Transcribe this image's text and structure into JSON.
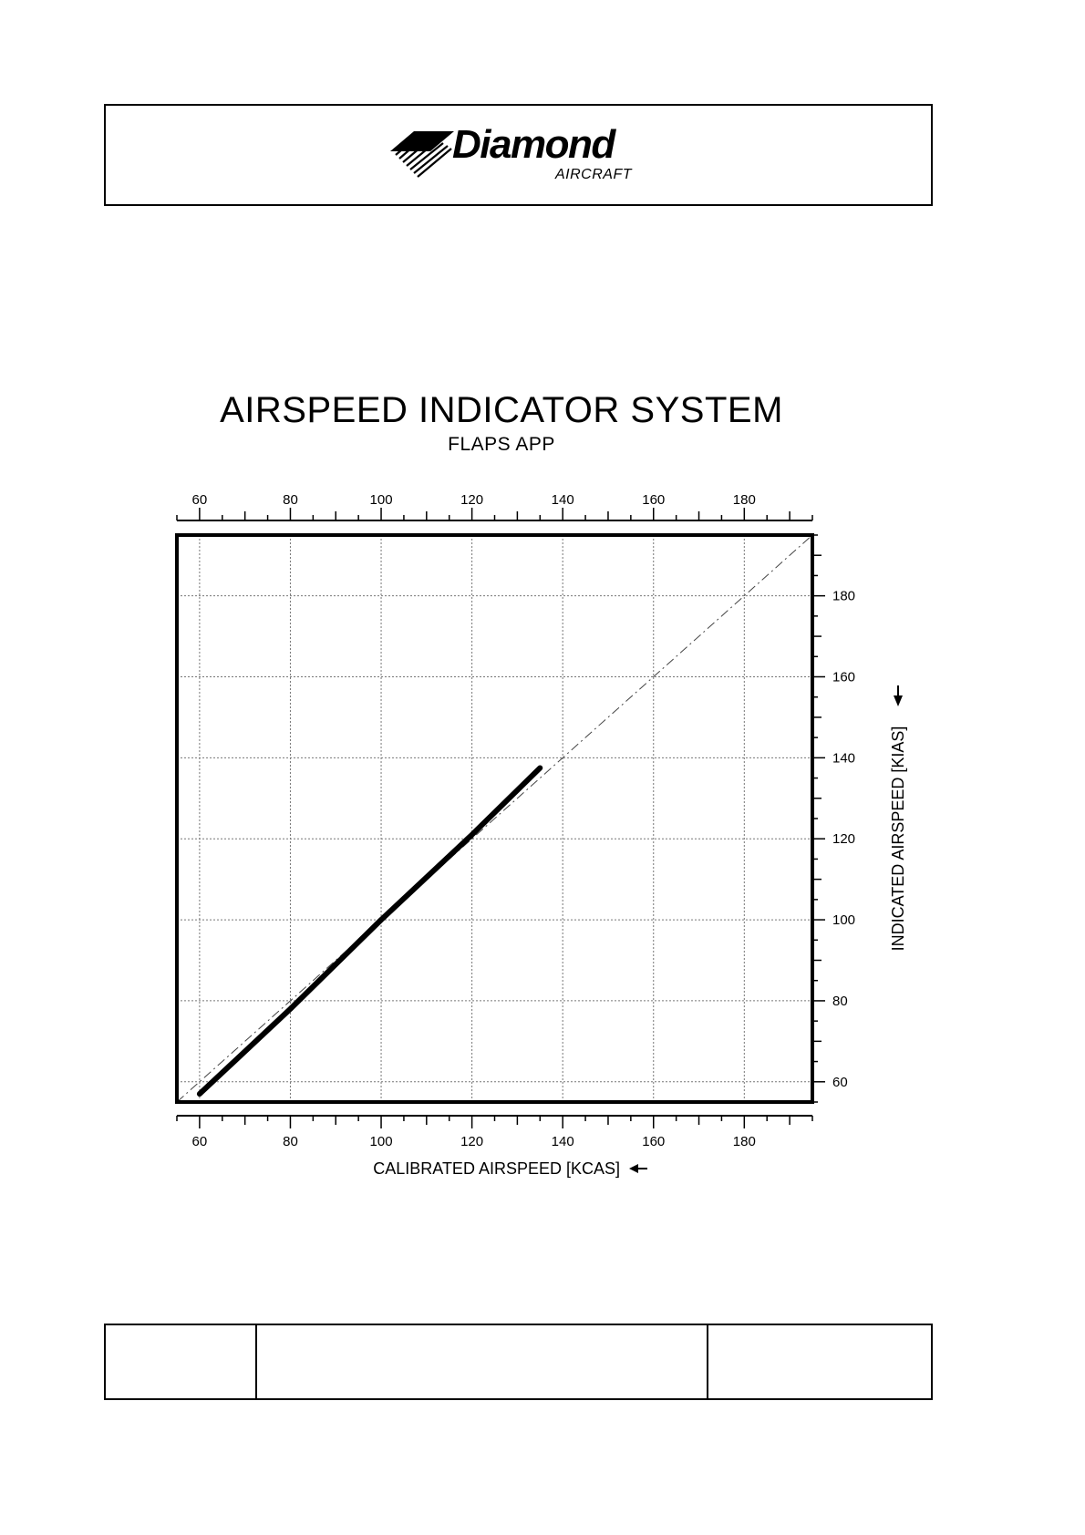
{
  "header": {
    "brand_name": "Diamond",
    "brand_sub": "AIRCRAFT"
  },
  "chart_data": {
    "type": "line",
    "title": "AIRSPEED INDICATOR SYSTEM",
    "subtitle": "FLAPS APP",
    "xlabel": "CALIBRATED AIRSPEED [KCAS]",
    "ylabel": "INDICATED AIRSPEED [KIAS]",
    "xlim": [
      55,
      195
    ],
    "ylim": [
      55,
      195
    ],
    "xticks": [
      60,
      80,
      100,
      120,
      140,
      160,
      180
    ],
    "yticks": [
      60,
      80,
      100,
      120,
      140,
      160,
      180
    ],
    "grid": true,
    "series": [
      {
        "style": "solid-thick",
        "x": [
          60,
          80,
          100,
          120,
          135
        ],
        "y": [
          57,
          78,
          100,
          121,
          137.5
        ]
      },
      {
        "style": "dash-dot-reference",
        "x": [
          55,
          195
        ],
        "y": [
          55,
          195
        ]
      }
    ]
  },
  "footer": {
    "cells": [
      "",
      "",
      ""
    ]
  }
}
